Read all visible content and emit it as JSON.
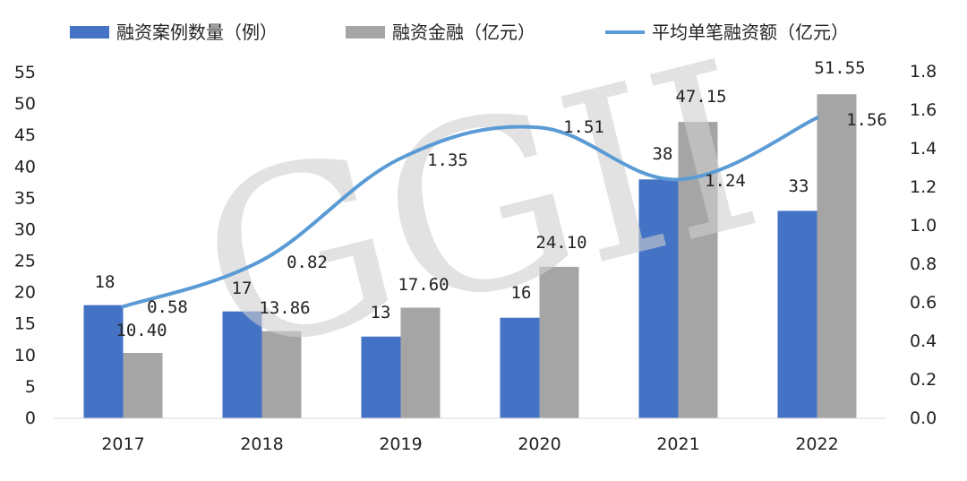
{
  "chart_data": {
    "type": "bar",
    "categories": [
      "2017",
      "2018",
      "2019",
      "2020",
      "2021",
      "2022"
    ],
    "series": [
      {
        "name": "融资案例数量（例）",
        "type": "bar",
        "axis": "left",
        "color": "#4472C4",
        "values": [
          18,
          17,
          13,
          16,
          38,
          33
        ],
        "labels": [
          "18",
          "17",
          "13",
          "16",
          "38",
          "33"
        ]
      },
      {
        "name": "融资金融（亿元）",
        "type": "bar",
        "axis": "left",
        "color": "#A5A5A5",
        "values": [
          10.4,
          13.86,
          17.6,
          24.1,
          47.15,
          51.55
        ],
        "labels": [
          "10.40",
          "13.86",
          "17.60",
          "24.10",
          "47.15",
          "51.55"
        ]
      },
      {
        "name": "平均单笔融资额（亿元）",
        "type": "line",
        "axis": "right",
        "color": "#5B9BD5",
        "values": [
          0.58,
          0.82,
          1.35,
          1.51,
          1.24,
          1.56
        ],
        "labels": [
          "0.58",
          "0.82",
          "1.35",
          "1.51",
          "1.24",
          "1.56"
        ]
      }
    ],
    "y_left": {
      "min": 0,
      "max": 55,
      "step": 5,
      "ticks": [
        "0",
        "5",
        "10",
        "15",
        "20",
        "25",
        "30",
        "35",
        "40",
        "45",
        "50",
        "55"
      ]
    },
    "y_right": {
      "min": 0,
      "max": 1.8,
      "step": 0.2,
      "ticks": [
        "0.0",
        "0.2",
        "0.4",
        "0.6",
        "0.8",
        "1.0",
        "1.2",
        "1.4",
        "1.6",
        "1.8"
      ]
    },
    "legend": "top",
    "grid": false,
    "watermark": "GGII"
  }
}
